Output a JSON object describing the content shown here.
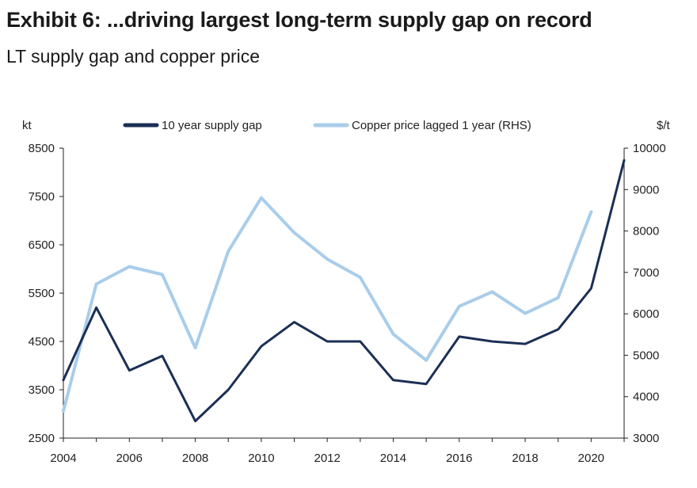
{
  "header": {
    "title": "Exhibit 6: ...driving largest long-term supply gap on record",
    "subtitle": "LT supply gap and copper price"
  },
  "chart_data": {
    "type": "line",
    "x": [
      2004,
      2005,
      2006,
      2007,
      2008,
      2009,
      2010,
      2011,
      2012,
      2013,
      2014,
      2015,
      2016,
      2017,
      2018,
      2019,
      2020,
      2021
    ],
    "x_ticks": [
      "2004",
      "2006",
      "2008",
      "2010",
      "2012",
      "2014",
      "2016",
      "2018",
      "2020"
    ],
    "xlim": [
      2004,
      2021
    ],
    "y_left": {
      "label": "kt",
      "ylim": [
        2500,
        8500
      ],
      "ticks": [
        "2500",
        "3500",
        "4500",
        "5500",
        "6500",
        "7500",
        "8500"
      ]
    },
    "y_right": {
      "label": "$/t",
      "ylim": [
        3000,
        10000
      ],
      "ticks": [
        "3000",
        "4000",
        "5000",
        "6000",
        "7000",
        "8000",
        "9000",
        "10000"
      ]
    },
    "series": [
      {
        "name": "10 year supply gap",
        "axis": "left",
        "color": "#1b2f55",
        "values": [
          3700,
          5200,
          3900,
          4200,
          2850,
          3500,
          4400,
          4900,
          4500,
          4500,
          3700,
          3620,
          4600,
          4500,
          4450,
          4750,
          5600,
          8250
        ]
      },
      {
        "name": "Copper price lagged 1 year (RHS)",
        "axis": "right",
        "color": "#a9cdea",
        "values": [
          3650,
          6720,
          7140,
          6950,
          5180,
          7510,
          8800,
          7960,
          7320,
          6880,
          5510,
          4880,
          6180,
          6530,
          6010,
          6390,
          8460,
          null
        ]
      }
    ],
    "legend_position": "top-center",
    "grid": false
  }
}
